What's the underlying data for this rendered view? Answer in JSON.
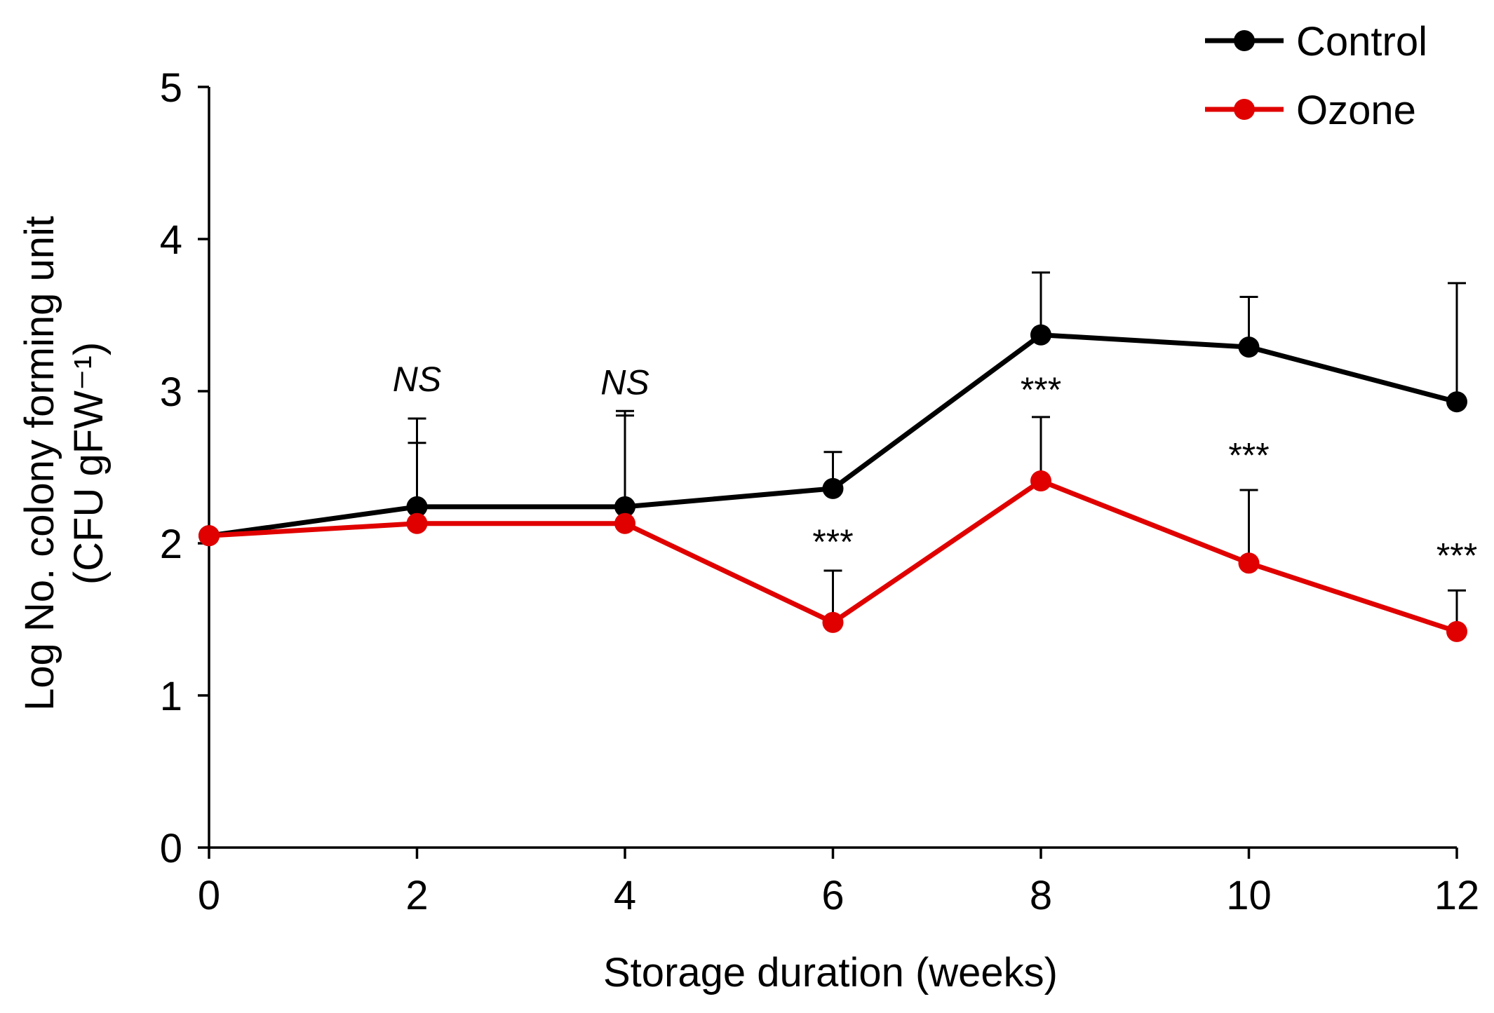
{
  "chart_data": {
    "type": "line",
    "title": "",
    "xlabel": "Storage duration  (weeks)",
    "ylabel_line1": "Log No. colony forming unit",
    "ylabel_line2": "(CFU gFW⁻¹)",
    "xlim": [
      0,
      12
    ],
    "ylim": [
      0,
      5
    ],
    "x_ticks": [
      0,
      2,
      4,
      6,
      8,
      10,
      12
    ],
    "y_ticks": [
      0,
      1,
      2,
      3,
      4,
      5
    ],
    "x": [
      0,
      2,
      4,
      6,
      8,
      10,
      12
    ],
    "series": [
      {
        "name": "Control",
        "color": "#000000",
        "values": [
          2.05,
          2.24,
          2.24,
          2.36,
          3.37,
          3.29,
          2.93
        ],
        "error_upper": [
          0,
          0.58,
          0.63,
          0.24,
          0.41,
          0.33,
          0.78
        ]
      },
      {
        "name": "Ozone",
        "color": "#e00000",
        "values": [
          2.05,
          2.13,
          2.13,
          1.48,
          2.41,
          1.87,
          1.42
        ],
        "error_upper": [
          0,
          0.53,
          0.71,
          0.34,
          0.42,
          0.48,
          0.27
        ]
      }
    ],
    "annotations": [
      {
        "x": 2,
        "y": 3.0,
        "text": "NS",
        "italic": true
      },
      {
        "x": 4,
        "y": 2.98,
        "text": "NS",
        "italic": true
      },
      {
        "x": 6,
        "y": 1.93,
        "text": "***",
        "italic": false
      },
      {
        "x": 8,
        "y": 2.93,
        "text": "***",
        "italic": false
      },
      {
        "x": 10,
        "y": 2.5,
        "text": "***",
        "italic": false
      },
      {
        "x": 12,
        "y": 1.84,
        "text": "***",
        "italic": false
      }
    ],
    "legend_position": "top-right",
    "grid": false
  }
}
